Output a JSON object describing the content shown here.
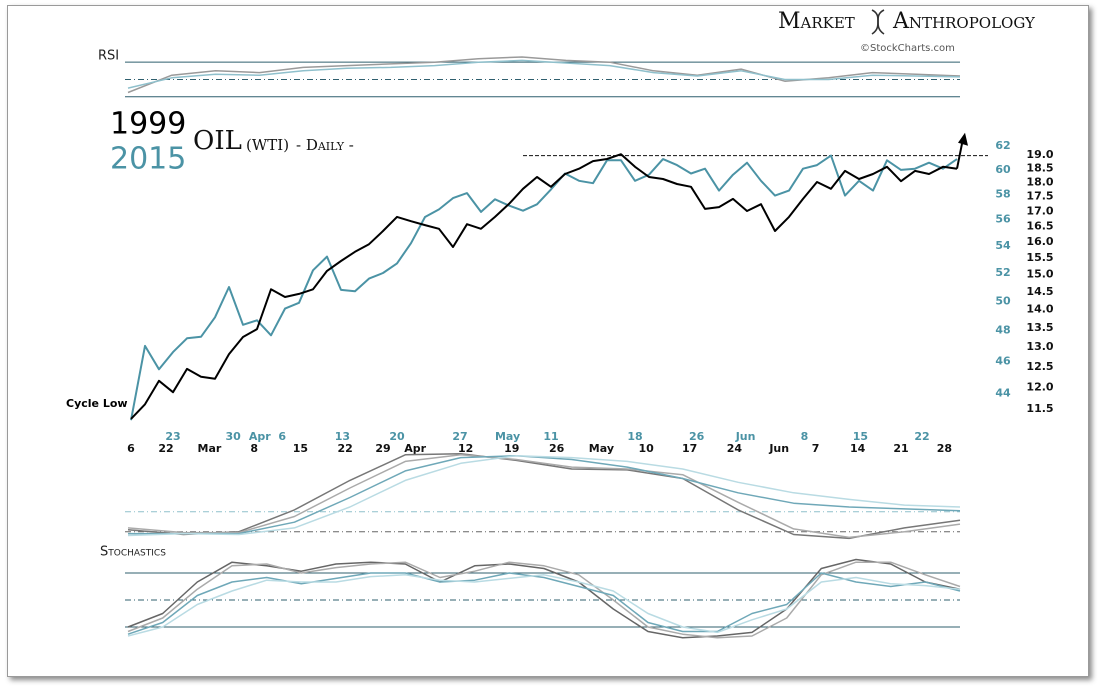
{
  "header": {
    "brand_left": "Market",
    "brand_right": "Anthropology",
    "credit": "©StockCharts.com"
  },
  "chart_data": [
    {
      "type": "line",
      "title": "RSI",
      "ylim": [
        24,
        91
      ],
      "levels": [
        {
          "value": 70,
          "style": "solid"
        },
        {
          "value": 50,
          "style": "dashdot"
        },
        {
          "value": 30,
          "style": "solid"
        }
      ],
      "series": [
        {
          "color": "#9a9a9a",
          "values": [
            35,
            55,
            60,
            58,
            64,
            66,
            68,
            70,
            74,
            76,
            72,
            70,
            60,
            55,
            62,
            48,
            52,
            58,
            56,
            54
          ]
        },
        {
          "color": "#8fc0cc",
          "values": [
            40,
            52,
            56,
            55,
            60,
            63,
            64,
            66,
            70,
            72,
            69,
            66,
            58,
            54,
            60,
            50,
            50,
            55,
            54,
            53
          ]
        }
      ]
    },
    {
      "type": "line",
      "title": "OIL",
      "title_note": "(WTI)",
      "title_suffix": "- Daily -",
      "annotation": "Cycle Low",
      "log_scale": true,
      "ylim": [
        42,
        63.5
      ],
      "y2lim": [
        11.1,
        20.0
      ],
      "yticks": [
        44,
        46,
        48,
        50,
        52,
        54,
        56,
        58,
        60,
        62
      ],
      "y2ticks": [
        11.5,
        {
          "value": 12,
          "label": "12.0"
        },
        12.5,
        {
          "value": 13,
          "label": "13.0"
        },
        13.5,
        {
          "value": 14,
          "label": "14.0"
        },
        14.5,
        {
          "value": 15,
          "label": "15.0"
        },
        15.5,
        {
          "value": 16,
          "label": "16.0"
        },
        16.5,
        {
          "value": 17,
          "label": "17.0"
        },
        17.5,
        {
          "value": 18,
          "label": "18.0"
        },
        18.5,
        {
          "value": 19,
          "label": "19.0"
        }
      ],
      "reference_line": {
        "value": 61.2,
        "start_index": 28
      },
      "x_labels_2015": [
        {
          "index": 3.0,
          "label": "23"
        },
        {
          "index": 7.3,
          "label": "30"
        },
        {
          "index": 9.2,
          "label": "Apr"
        },
        {
          "index": 10.8,
          "label": "6"
        },
        {
          "index": 15.1,
          "label": "13"
        },
        {
          "index": 19.0,
          "label": "20"
        },
        {
          "index": 23.5,
          "label": "27"
        },
        {
          "index": 26.9,
          "label": "May"
        },
        {
          "index": 30.0,
          "label": "11"
        },
        {
          "index": 36.0,
          "label": "18"
        },
        {
          "index": 40.4,
          "label": "26"
        },
        {
          "index": 43.9,
          "label": "Jun"
        },
        {
          "index": 48.1,
          "label": "8"
        },
        {
          "index": 52.1,
          "label": "15"
        },
        {
          "index": 56.5,
          "label": "22"
        }
      ],
      "x_labels_1999": [
        {
          "index": 0,
          "label": "6"
        },
        {
          "index": 2.5,
          "label": "22"
        },
        {
          "index": 5.6,
          "label": "Mar"
        },
        {
          "index": 8.8,
          "label": "8"
        },
        {
          "index": 12.1,
          "label": "15"
        },
        {
          "index": 15.3,
          "label": "22"
        },
        {
          "index": 18.0,
          "label": "29"
        },
        {
          "index": 20.3,
          "label": "Apr"
        },
        {
          "index": 23.9,
          "label": "12"
        },
        {
          "index": 27.2,
          "label": "19"
        },
        {
          "index": 30.4,
          "label": "26"
        },
        {
          "index": 33.6,
          "label": "May"
        },
        {
          "index": 36.8,
          "label": "10"
        },
        {
          "index": 39.9,
          "label": "17"
        },
        {
          "index": 43.1,
          "label": "24"
        },
        {
          "index": 46.3,
          "label": "Jun"
        },
        {
          "index": 48.9,
          "label": "7"
        },
        {
          "index": 51.9,
          "label": "14"
        },
        {
          "index": 55.0,
          "label": "21"
        },
        {
          "index": 58.1,
          "label": "28"
        }
      ],
      "series": [
        {
          "name": "2015",
          "color": "#4b93a5",
          "values": [
            42.4,
            47.0,
            45.5,
            46.6,
            47.5,
            47.6,
            48.9,
            51.0,
            48.4,
            48.7,
            47.7,
            49.5,
            49.9,
            52.2,
            53.2,
            50.8,
            50.7,
            51.6,
            52.0,
            52.7,
            54.2,
            56.2,
            56.8,
            57.7,
            58.1,
            56.6,
            57.6,
            57.1,
            56.7,
            57.2,
            58.4,
            59.7,
            59.1,
            58.9,
            60.8,
            60.8,
            59.1,
            59.6,
            60.9,
            60.4,
            59.7,
            60.1,
            58.3,
            59.6,
            60.6,
            59.1,
            57.9,
            58.3,
            60.1,
            60.4,
            61.2,
            57.9,
            59.1,
            58.3,
            60.8,
            60.0,
            60.1,
            60.6,
            60.1,
            60.9
          ]
        },
        {
          "name": "1999",
          "color": "#000000",
          "axis": "y2",
          "values": [
            11.28,
            11.61,
            12.16,
            11.89,
            12.45,
            12.26,
            12.21,
            12.82,
            13.26,
            13.47,
            14.57,
            14.35,
            14.44,
            14.57,
            15.11,
            15.41,
            15.69,
            15.93,
            16.35,
            16.81,
            16.67,
            16.54,
            16.42,
            15.84,
            16.57,
            16.42,
            16.81,
            17.25,
            17.77,
            18.19,
            17.84,
            18.3,
            18.49,
            18.77,
            18.85,
            19.03,
            18.56,
            18.19,
            18.12,
            17.94,
            17.84,
            17.08,
            17.14,
            17.42,
            17.01,
            17.24,
            16.35,
            16.81,
            17.42,
            18.01,
            17.77,
            18.41,
            18.12,
            18.3,
            18.56,
            18.04,
            18.41,
            18.3,
            18.56,
            18.49
          ]
        }
      ]
    },
    {
      "type": "line",
      "ylim": [
        0,
        100
      ],
      "levels": [
        {
          "value": 35,
          "style": "dashdot",
          "color": "#8fc0cc"
        },
        {
          "value": 14,
          "style": "dashdot",
          "color": "#666666"
        }
      ],
      "series": [
        {
          "color": "#777777",
          "values": [
            16,
            11,
            14,
            37,
            68,
            95,
            96,
            89,
            80,
            79,
            70,
            37,
            11,
            7,
            18,
            26
          ]
        },
        {
          "color": "#aaaaaa",
          "values": [
            18,
            13,
            13,
            30,
            60,
            88,
            95,
            90,
            82,
            80,
            74,
            45,
            17,
            8,
            14,
            22
          ]
        },
        {
          "color": "#6fa8b8",
          "values": [
            12,
            12,
            12,
            24,
            50,
            78,
            92,
            94,
            90,
            82,
            70,
            55,
            44,
            40,
            38,
            36
          ]
        },
        {
          "color": "#b9dbe3",
          "values": [
            10,
            12,
            11,
            18,
            40,
            68,
            86,
            94,
            92,
            88,
            80,
            66,
            55,
            48,
            42,
            40
          ]
        }
      ]
    },
    {
      "type": "line",
      "title": "Stochastics",
      "ylim": [
        0,
        100
      ],
      "levels": [
        {
          "value": 80,
          "style": "solid"
        },
        {
          "value": 50,
          "style": "dashdot"
        },
        {
          "value": 20,
          "style": "solid"
        }
      ],
      "series": [
        {
          "color": "#666666",
          "values": [
            20,
            35,
            70,
            92,
            88,
            82,
            90,
            92,
            90,
            70,
            88,
            90,
            85,
            70,
            40,
            15,
            8,
            10,
            14,
            40,
            85,
            95,
            90,
            70,
            62
          ]
        },
        {
          "color": "#aaaaaa",
          "values": [
            15,
            30,
            62,
            88,
            90,
            80,
            86,
            90,
            92,
            75,
            82,
            92,
            88,
            78,
            50,
            20,
            12,
            8,
            10,
            30,
            78,
            92,
            92,
            78,
            65
          ]
        },
        {
          "color": "#6fa8b8",
          "values": [
            12,
            25,
            55,
            70,
            75,
            68,
            74,
            80,
            80,
            70,
            72,
            80,
            75,
            65,
            55,
            25,
            15,
            15,
            35,
            45,
            80,
            70,
            65,
            70,
            60
          ]
        },
        {
          "color": "#b9dbe3",
          "values": [
            10,
            20,
            45,
            60,
            72,
            70,
            70,
            76,
            78,
            72,
            70,
            74,
            78,
            70,
            60,
            35,
            20,
            14,
            28,
            40,
            70,
            75,
            68,
            66,
            62
          ]
        }
      ]
    }
  ]
}
